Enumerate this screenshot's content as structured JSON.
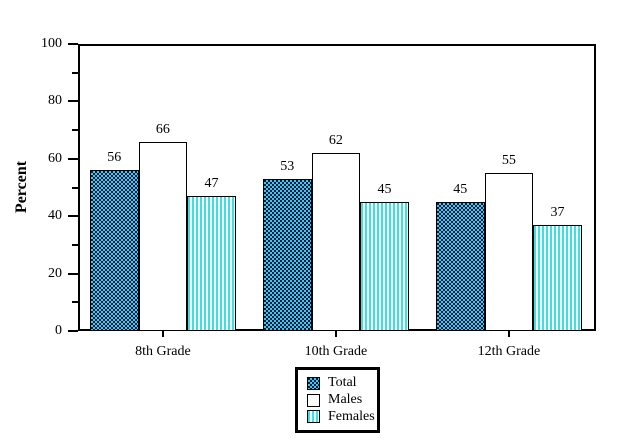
{
  "chart_data": {
    "type": "bar",
    "title": "",
    "xlabel": "",
    "ylabel": "Percent",
    "categories": [
      "8th Grade",
      "10th Grade",
      "12th Grade"
    ],
    "series": [
      {
        "name": "Total",
        "pattern": "crosshatch",
        "values": [
          56,
          53,
          45
        ]
      },
      {
        "name": "Males",
        "pattern": "solid",
        "values": [
          66,
          62,
          55
        ]
      },
      {
        "name": "Females",
        "pattern": "vstripes",
        "values": [
          47,
          45,
          37
        ]
      }
    ],
    "ylim": [
      0,
      100
    ],
    "y_major_ticks": [
      0,
      20,
      40,
      60,
      80,
      100
    ],
    "y_minor_step": 10,
    "bar_labels": true,
    "grid": false,
    "legend_position": "bottom-center",
    "colors": {
      "total_fg": "#3cc9f0",
      "total_bg": "#001a3c",
      "females_fg": "#38e2e4",
      "females_bg": "#ffffff",
      "males_fill": "#ffffff",
      "outline": "#000000"
    }
  }
}
